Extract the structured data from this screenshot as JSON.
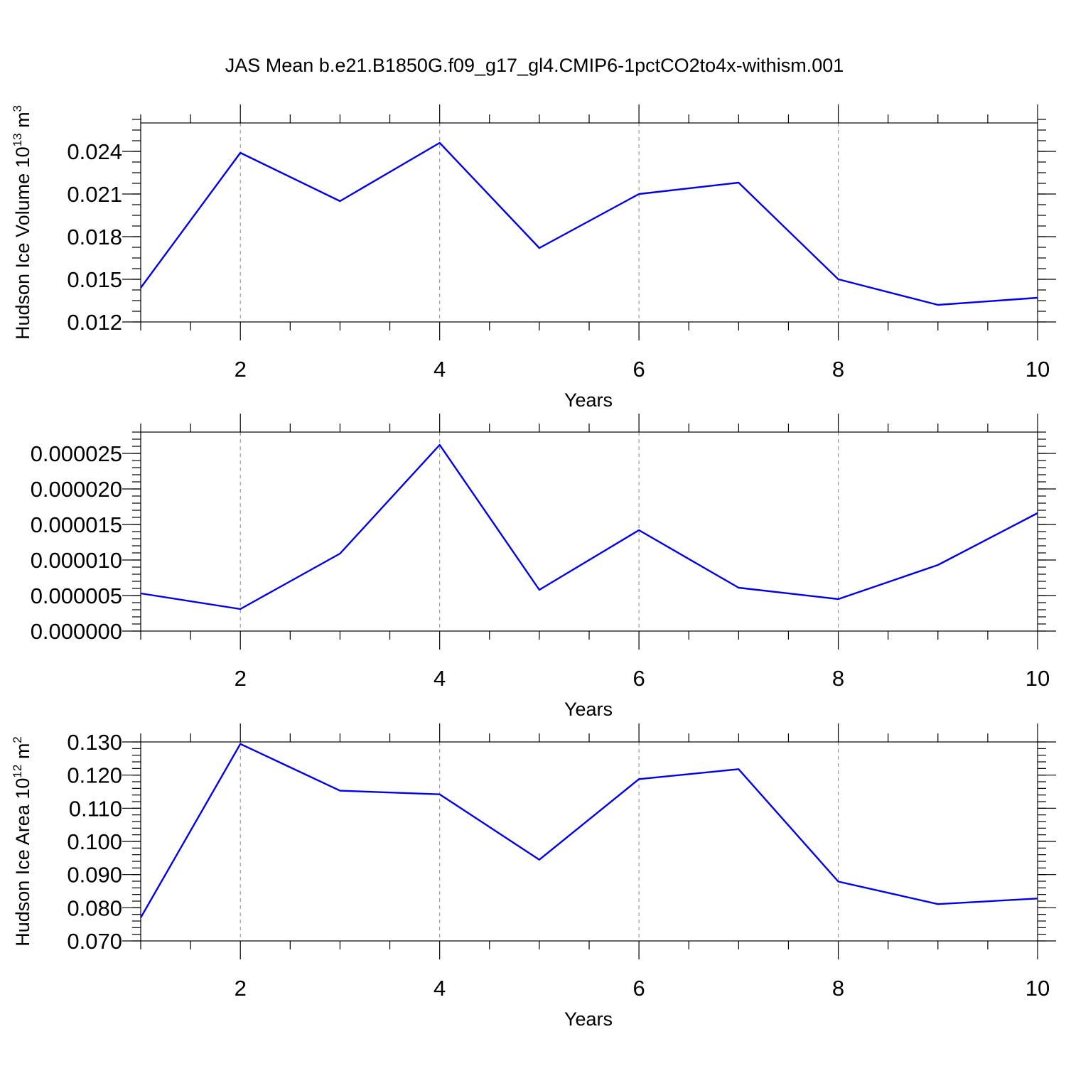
{
  "title": "JAS Mean b.e21.B1850G.f09_g17_gl4.CMIP6-1pctCO2to4x-withism.001",
  "series_color": "#0000ee",
  "chart_data": [
    {
      "type": "line",
      "ylabel": "Hudson Ice Volume 10",
      "ylabel_sup": "13",
      "ylabel_unit": " m",
      "ylabel_unit_sup": "3",
      "xlabel": "Years",
      "xlim": [
        1,
        10
      ],
      "ylim": [
        0.012,
        0.026
      ],
      "x": [
        1,
        2,
        3,
        4,
        5,
        6,
        7,
        8,
        9,
        10
      ],
      "y": [
        0.0144,
        0.0239,
        0.0205,
        0.0246,
        0.0172,
        0.021,
        0.0218,
        0.015,
        0.0132,
        0.0137
      ],
      "xticks": [
        2,
        4,
        6,
        8,
        10
      ],
      "xtick_labels": [
        "2",
        "4",
        "6",
        "8",
        "10"
      ],
      "yticks": [
        0.012,
        0.015,
        0.018,
        0.021,
        0.024
      ],
      "ytick_labels": [
        "0.012",
        "0.015",
        "0.018",
        "0.021",
        "0.024"
      ],
      "yminor_step": 0.00075,
      "grid": "vertical-dashed"
    },
    {
      "type": "line",
      "ylabel": "",
      "ylabel_sup": "",
      "ylabel_unit": "",
      "ylabel_unit_sup": "",
      "xlabel": "Years",
      "xlim": [
        1,
        10
      ],
      "ylim": [
        0.0,
        2.8e-05
      ],
      "x": [
        1,
        2,
        3,
        4,
        5,
        6,
        7,
        8,
        9,
        10
      ],
      "y": [
        5.3e-06,
        3.1e-06,
        1.09e-05,
        2.62e-05,
        5.8e-06,
        1.42e-05,
        6.1e-06,
        4.5e-06,
        9.3e-06,
        1.66e-05
      ],
      "xticks": [
        2,
        4,
        6,
        8,
        10
      ],
      "xtick_labels": [
        "2",
        "4",
        "6",
        "8",
        "10"
      ],
      "yticks": [
        0.0,
        5e-06,
        1e-05,
        1.5e-05,
        2e-05,
        2.5e-05
      ],
      "ytick_labels": [
        "0.000000",
        "0.000005",
        "0.000010",
        "0.000015",
        "0.000020",
        "0.000025"
      ],
      "yminor_step": 1e-06,
      "grid": "vertical-dashed"
    },
    {
      "type": "line",
      "ylabel": "Hudson Ice Area 10",
      "ylabel_sup": "12",
      "ylabel_unit": " m",
      "ylabel_unit_sup": "2",
      "xlabel": "Years",
      "xlim": [
        1,
        10
      ],
      "ylim": [
        0.07,
        0.13
      ],
      "x": [
        1,
        2,
        3,
        4,
        5,
        6,
        7,
        8,
        9,
        10
      ],
      "y": [
        0.077,
        0.1294,
        0.1153,
        0.1142,
        0.0945,
        0.1188,
        0.1218,
        0.0879,
        0.0811,
        0.0828
      ],
      "xticks": [
        2,
        4,
        6,
        8,
        10
      ],
      "xtick_labels": [
        "2",
        "4",
        "6",
        "8",
        "10"
      ],
      "yticks": [
        0.07,
        0.08,
        0.09,
        0.1,
        0.11,
        0.12,
        0.13
      ],
      "ytick_labels": [
        "0.070",
        "0.080",
        "0.090",
        "0.100",
        "0.110",
        "0.120",
        "0.130"
      ],
      "yminor_step": 0.002,
      "grid": "vertical-dashed"
    }
  ]
}
